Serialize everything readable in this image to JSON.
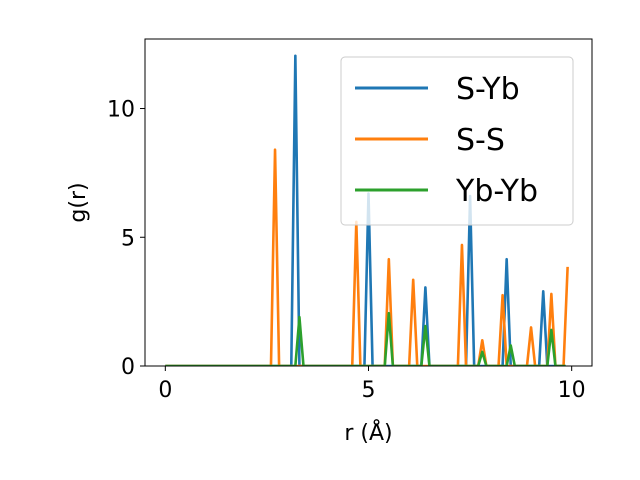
{
  "chart_data": {
    "type": "line",
    "xlabel": "r (Å)",
    "ylabel": "g(r)",
    "xlim": [
      -0.5,
      10.5
    ],
    "ylim": [
      0,
      12.7
    ],
    "xticks": [
      0,
      5,
      10
    ],
    "yticks": [
      0,
      5,
      10
    ],
    "grid": false,
    "legend_position": "top-right",
    "series": [
      {
        "name": "S-Yb",
        "color": "#1f77b4",
        "x": [
          0,
          3.1,
          3.2,
          3.3,
          4.9,
          5.0,
          5.1,
          6.3,
          6.4,
          6.5,
          7.4,
          7.5,
          7.6,
          8.3,
          8.4,
          8.5,
          9.2,
          9.3,
          9.4,
          9.85
        ],
        "y": [
          0,
          0,
          12.05,
          0,
          0,
          6.7,
          0,
          0,
          3.05,
          0,
          0,
          6.6,
          0,
          0,
          4.15,
          0,
          0,
          2.9,
          0,
          0
        ]
      },
      {
        "name": "S-S",
        "color": "#ff7f0e",
        "x": [
          0,
          2.6,
          2.7,
          2.8,
          4.6,
          4.7,
          4.8,
          5.4,
          5.5,
          5.6,
          6.0,
          6.1,
          6.2,
          7.2,
          7.3,
          7.4,
          7.7,
          7.8,
          7.9,
          8.2,
          8.3,
          8.4,
          8.9,
          9.0,
          9.1,
          9.4,
          9.5,
          9.6,
          9.8,
          9.9
        ],
        "y": [
          0,
          0,
          8.4,
          0,
          0,
          5.6,
          0,
          0,
          4.15,
          0,
          0,
          3.35,
          0,
          0,
          4.7,
          0,
          0,
          1.0,
          0,
          0,
          2.75,
          0,
          0,
          1.5,
          0,
          0,
          2.8,
          0,
          0,
          3.85
        ]
      },
      {
        "name": "Yb-Yb",
        "color": "#2ca02c",
        "x": [
          0,
          3.2,
          3.3,
          3.4,
          5.4,
          5.5,
          5.6,
          6.3,
          6.4,
          6.5,
          7.7,
          7.8,
          7.9,
          8.4,
          8.5,
          8.6,
          9.4,
          9.5,
          9.6,
          9.85
        ],
        "y": [
          0,
          0,
          1.9,
          0,
          0,
          2.05,
          0,
          0,
          1.55,
          0,
          0,
          0.55,
          0,
          0,
          0.8,
          0,
          0,
          1.4,
          0,
          0
        ]
      }
    ]
  }
}
